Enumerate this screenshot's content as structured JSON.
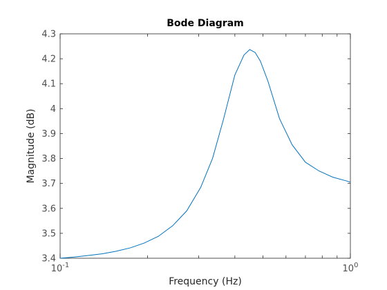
{
  "chart_data": {
    "type": "line",
    "title": "Bode Diagram",
    "xlabel": "Frequency  (Hz)",
    "ylabel": "Magnitude (dB)",
    "x_scale": "log",
    "xlim": [
      0.1,
      1
    ],
    "ylim": [
      3.4,
      4.3
    ],
    "x_ticks": [
      {
        "value": 0.1,
        "base": "10",
        "exp": "-1"
      },
      {
        "value": 1,
        "base": "10",
        "exp": "0"
      }
    ],
    "y_ticks": [
      "3.4",
      "3.5",
      "3.6",
      "3.7",
      "3.8",
      "3.9",
      "4",
      "4.1",
      "4.2",
      "4.3"
    ],
    "grid": false,
    "line_color": "#0072bd",
    "series": [
      {
        "x": [
          0.1,
          0.112,
          0.125,
          0.14,
          0.156,
          0.175,
          0.195,
          0.218,
          0.244,
          0.273,
          0.305,
          0.335,
          0.365,
          0.4,
          0.43,
          0.45,
          0.47,
          0.49,
          0.52,
          0.57,
          0.63,
          0.7,
          0.78,
          0.87,
          0.97,
          1.0
        ],
        "y": [
          3.4,
          3.405,
          3.411,
          3.418,
          3.428,
          3.442,
          3.461,
          3.488,
          3.53,
          3.59,
          3.684,
          3.8,
          3.955,
          4.135,
          4.215,
          4.237,
          4.225,
          4.19,
          4.11,
          3.96,
          3.855,
          3.785,
          3.75,
          3.725,
          3.71,
          3.705
        ]
      }
    ]
  }
}
